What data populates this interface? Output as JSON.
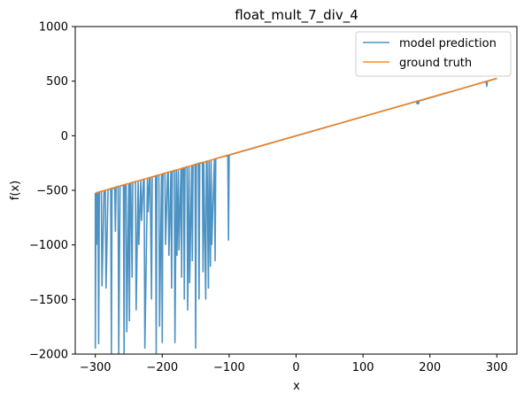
{
  "chart_data": {
    "type": "line",
    "title": "float_mult_7_div_4",
    "xlabel": "x",
    "ylabel": "f(x)",
    "xlim": [
      -330,
      330
    ],
    "ylim": [
      -2000,
      1000
    ],
    "xticks": [
      -300,
      -200,
      -100,
      0,
      100,
      200,
      300
    ],
    "xtick_labels": [
      "−300",
      "−200",
      "−100",
      "0",
      "100",
      "200",
      "300"
    ],
    "yticks": [
      -2000,
      -1500,
      -1000,
      -500,
      0,
      500,
      1000
    ],
    "ytick_labels": [
      "−2000",
      "−1500",
      "−1000",
      "−500",
      "0",
      "500",
      "1000"
    ],
    "legend_position": "top-right",
    "grid": false,
    "series": [
      {
        "name": "model prediction",
        "color": "#1f77b4",
        "kind": "prediction",
        "x": [
          -300,
          -300,
          -299,
          -298,
          -297,
          -296,
          -295,
          -294,
          -291,
          -290,
          -287,
          -286,
          -285,
          -284,
          -281,
          -280,
          -277,
          -276,
          -275,
          -271,
          -270,
          -269,
          -266,
          -265,
          -263,
          -262,
          -258,
          -257,
          -256,
          -254,
          -253,
          -250,
          -249,
          -248,
          -247,
          -245,
          -244,
          -240,
          -239,
          -236,
          -235,
          -232,
          -231,
          -228,
          -227,
          -226,
          -222,
          -221,
          -219,
          -218,
          -216,
          -215,
          -213,
          -212,
          -210,
          -209,
          -208,
          -205,
          -204,
          -201,
          -200,
          -199,
          -196,
          -195,
          -192,
          -191,
          -190,
          -187,
          -186,
          -185,
          -182,
          -181,
          -179,
          -178,
          -176,
          -175,
          -172,
          -171,
          -170,
          -168,
          -167,
          -166,
          -163,
          -162,
          -160,
          -159,
          -156,
          -155,
          -154,
          -151,
          -150,
          -149,
          -146,
          -145,
          -144,
          -140,
          -139,
          -138,
          -135,
          -134,
          -133,
          -131,
          -130,
          -128,
          -127,
          -126,
          -122,
          -121,
          -120,
          -102,
          -101,
          -100,
          -99,
          180,
          181,
          182,
          183,
          184,
          185,
          284,
          285,
          286,
          287,
          300
        ],
        "y": [
          -525,
          -1950,
          -523,
          -1000,
          -520,
          -519,
          -1910,
          -515,
          -510,
          -1380,
          -508,
          -505,
          -503,
          -1400,
          -495,
          -492,
          -487,
          -2000,
          -482,
          -475,
          -880,
          -470,
          -465,
          -2000,
          -460,
          -458,
          -452,
          -2000,
          -448,
          -444,
          -1800,
          -438,
          -1700,
          -435,
          -433,
          -1300,
          -428,
          -420,
          -1600,
          -413,
          -1000,
          -406,
          -780,
          -399,
          -397,
          -1950,
          -388,
          -700,
          -383,
          -382,
          -1500,
          -378,
          -373,
          -372,
          -368,
          -2000,
          -364,
          -359,
          -1750,
          -352,
          -1900,
          -348,
          -343,
          -1000,
          -336,
          -334,
          -1100,
          -327,
          -1400,
          -324,
          -318,
          -1900,
          -313,
          -1100,
          -308,
          -1050,
          -301,
          -1300,
          -297,
          -294,
          -1500,
          -290,
          -285,
          -1600,
          -280,
          -1350,
          -273,
          -1150,
          -269,
          -264,
          -1950,
          -260,
          -254,
          -1500,
          -251,
          -245,
          -1250,
          -241,
          -1500,
          -236,
          -234,
          -1400,
          -229,
          -1200,
          -223,
          -1000,
          -212,
          -1150,
          -210,
          -180,
          -960,
          -177,
          -175,
          315,
          288,
          316,
          290,
          318,
          320,
          497,
          450,
          500,
          502,
          525
        ]
      },
      {
        "name": "ground truth",
        "color": "#ff7f0e",
        "kind": "truth",
        "x": [
          -300,
          300
        ],
        "y": [
          -525,
          525
        ]
      }
    ]
  }
}
